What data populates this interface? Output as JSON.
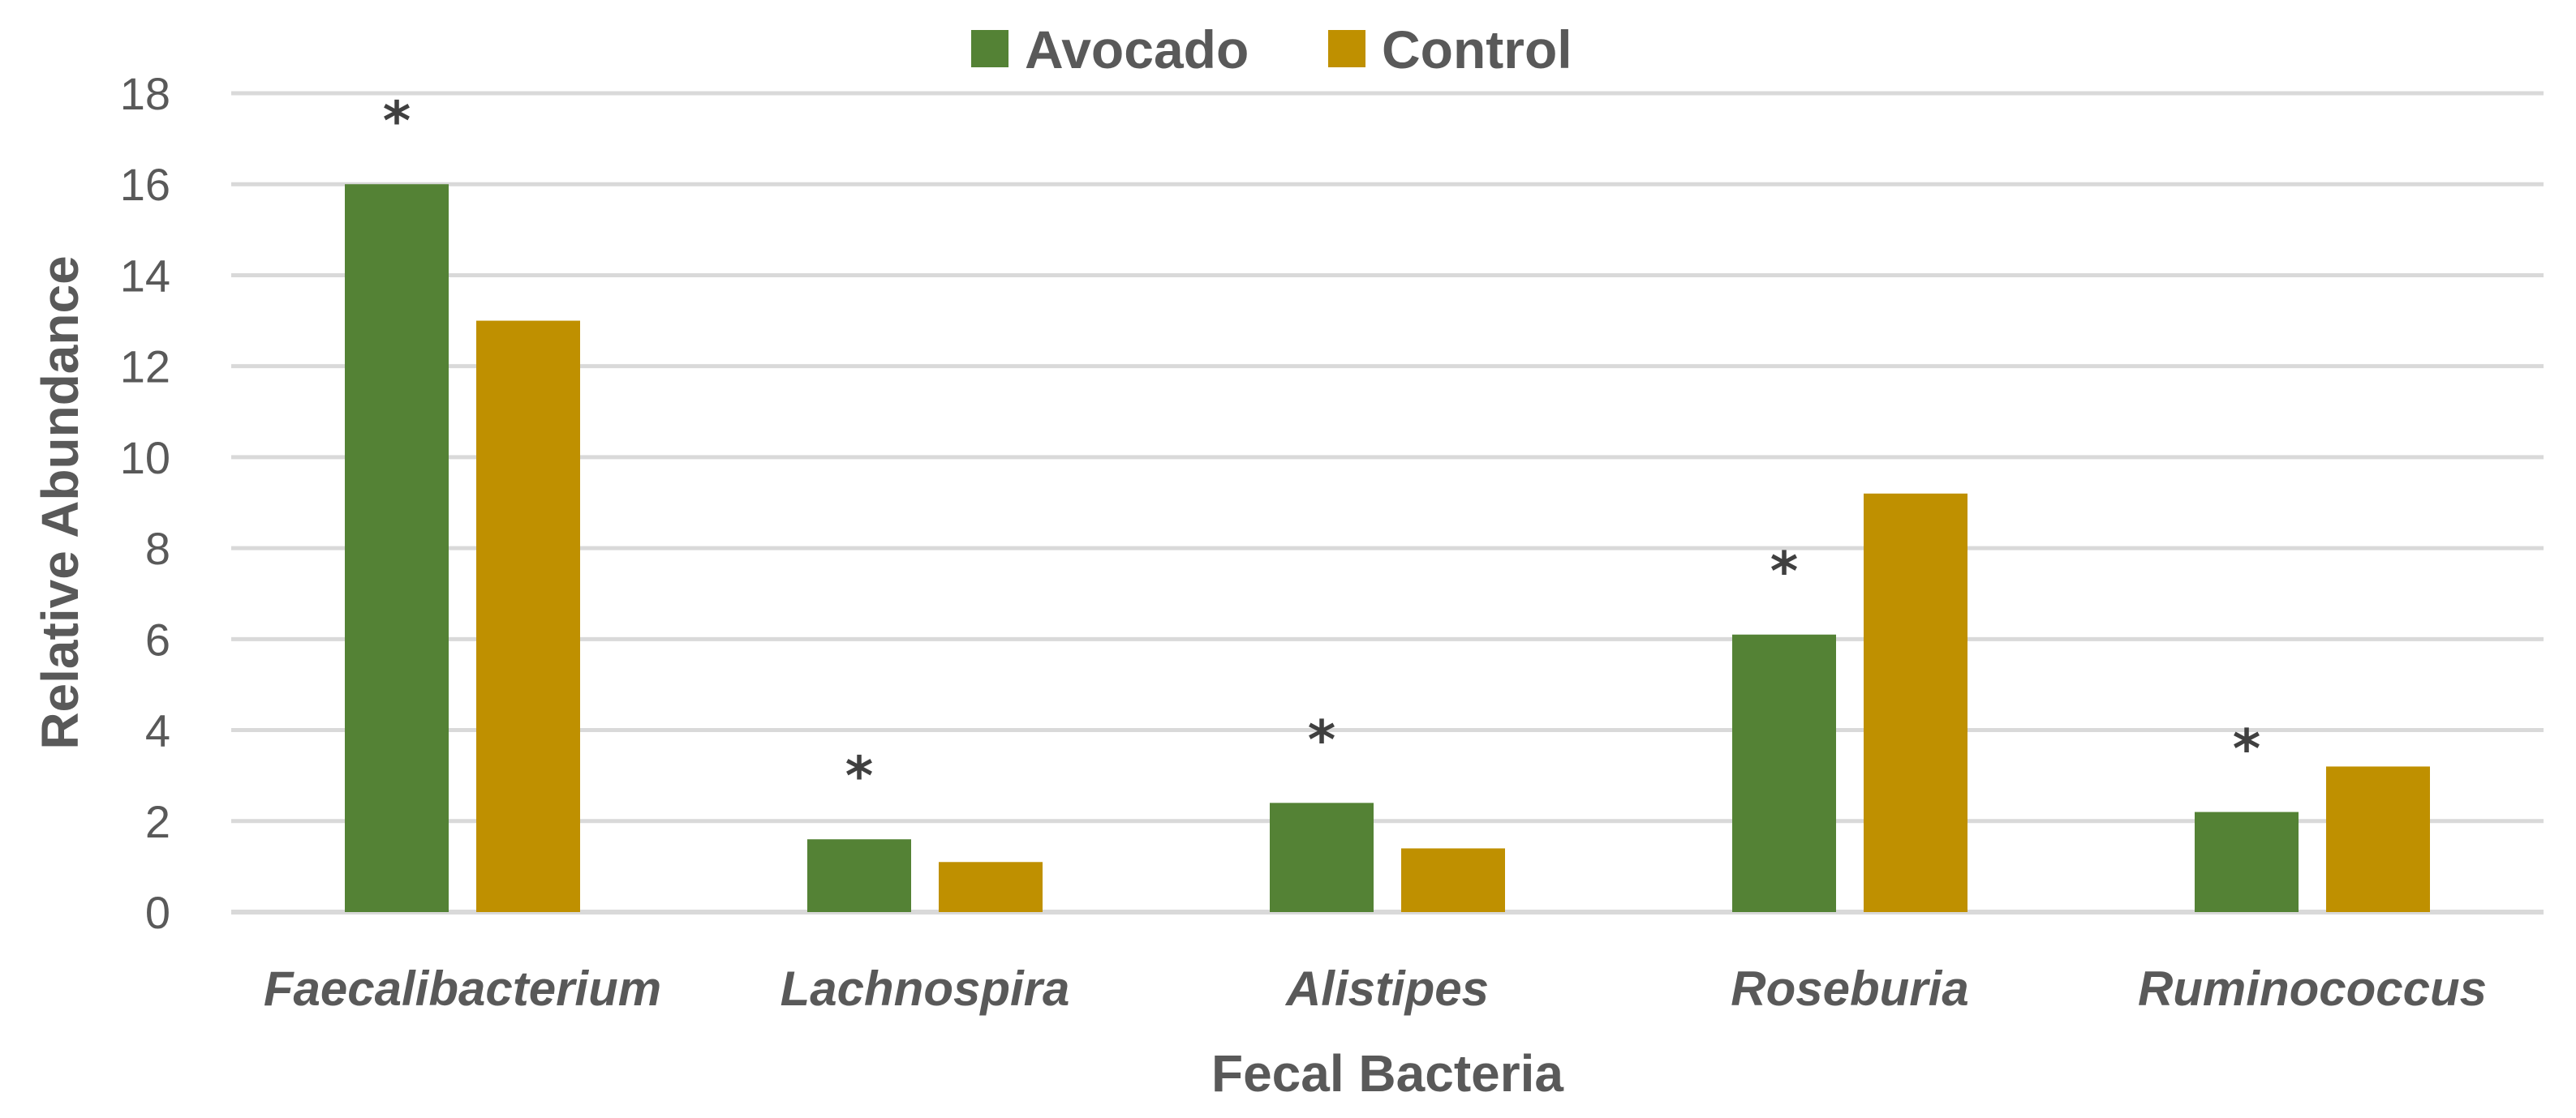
{
  "chart_data": {
    "type": "bar",
    "title": "",
    "xlabel": "Fecal Bacteria",
    "ylabel": "Relative Abundance",
    "ylim": [
      0,
      18
    ],
    "yticks": [
      0,
      2,
      4,
      6,
      8,
      10,
      12,
      14,
      16,
      18
    ],
    "grid": true,
    "legend_position": "top-center",
    "categories": [
      "Faecalibacterium",
      "Lachnospira",
      "Alistipes",
      "Roseburia",
      "Ruminococcus"
    ],
    "series": [
      {
        "name": "Avocado",
        "color": "#548235",
        "values": [
          16.0,
          1.6,
          2.4,
          6.1,
          2.2
        ]
      },
      {
        "name": "Control",
        "color": "#bf9000",
        "values": [
          13.0,
          1.1,
          1.4,
          9.2,
          3.2
        ]
      }
    ],
    "annotations": [
      {
        "category": "Faecalibacterium",
        "series": "Avocado",
        "text": "*"
      },
      {
        "category": "Lachnospira",
        "series": "Avocado",
        "text": "*"
      },
      {
        "category": "Alistipes",
        "series": "Avocado",
        "text": "*"
      },
      {
        "category": "Roseburia",
        "series": "Avocado",
        "text": "*"
      },
      {
        "category": "Ruminococcus",
        "series": "Avocado",
        "text": "*"
      }
    ]
  }
}
